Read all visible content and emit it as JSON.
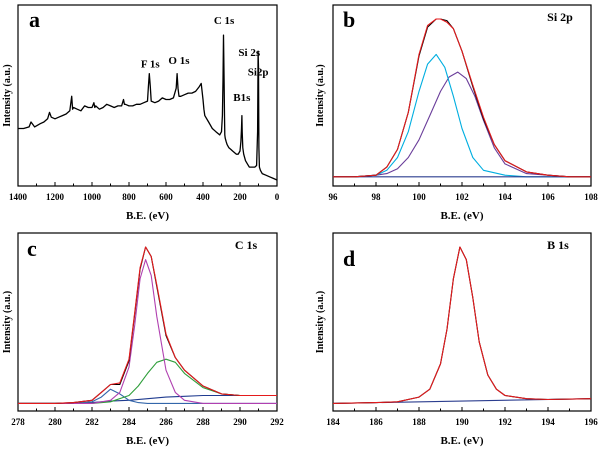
{
  "chart_data": [
    {
      "id": "a",
      "panel_letter": "a",
      "panel_title": "",
      "type": "line",
      "xlabel": "B.E. (eV)",
      "ylabel": "Intensity (a.u.)",
      "x_reversed": true,
      "xlim": [
        1400,
        0
      ],
      "xticks": [
        1400,
        1200,
        1000,
        800,
        600,
        400,
        200,
        0
      ],
      "tick_labels": [
        "1400",
        "1200",
        "1000",
        "800",
        "600",
        "400",
        "200",
        "0"
      ],
      "ylim": [
        0,
        100
      ],
      "series": [
        {
          "color": "#000000",
          "x": [
            1400,
            1370,
            1340,
            1330,
            1310,
            1280,
            1260,
            1240,
            1230,
            1220,
            1200,
            1180,
            1160,
            1140,
            1120,
            1110,
            1105,
            1100,
            1080,
            1060,
            1040,
            1020,
            1000,
            990,
            985,
            980,
            960,
            940,
            920,
            900,
            880,
            860,
            840,
            830,
            825,
            820,
            800,
            780,
            760,
            740,
            720,
            700,
            695,
            690,
            685,
            680,
            660,
            640,
            620,
            600,
            580,
            560,
            545,
            540,
            535,
            530,
            520,
            500,
            480,
            460,
            440,
            420,
            410,
            405,
            400,
            395,
            390,
            370,
            350,
            330,
            310,
            300,
            295,
            292,
            289,
            286,
            284,
            282,
            280,
            275,
            270,
            260,
            250,
            240,
            230,
            220,
            210,
            200,
            195,
            192,
            190,
            188,
            185,
            180,
            170,
            160,
            150,
            140,
            120,
            110,
            105,
            102,
            100,
            98,
            95,
            90,
            80,
            60,
            40,
            20,
            0
          ],
          "y": [
            32,
            32,
            33,
            36,
            33,
            35,
            36,
            38,
            42,
            39,
            38,
            39,
            40,
            41,
            43,
            52,
            44,
            45,
            44,
            43,
            46,
            45,
            45,
            48,
            45,
            46,
            44,
            45,
            47,
            46,
            45,
            46,
            46,
            50,
            47,
            47,
            46,
            46,
            47,
            47,
            48,
            49,
            58,
            66,
            58,
            49,
            48,
            49,
            51,
            50,
            50,
            51,
            57,
            66,
            57,
            52,
            52,
            53,
            54,
            54,
            55,
            58,
            60,
            55,
            50,
            44,
            40,
            36,
            32,
            30,
            28,
            30,
            40,
            62,
            90,
            62,
            40,
            28,
            26,
            24,
            22,
            20,
            19,
            18,
            17,
            16,
            16,
            18,
            24,
            32,
            40,
            30,
            20,
            16,
            12,
            10,
            8,
            8,
            8,
            9,
            30,
            80,
            70,
            20,
            8,
            6,
            4,
            3,
            2,
            1,
            0
          ]
        }
      ],
      "annotations": [
        {
          "text": "F 1s",
          "x": 685,
          "y": 70
        },
        {
          "text": "O 1s",
          "x": 530,
          "y": 72
        },
        {
          "text": "C 1s",
          "x": 286,
          "y": 97
        },
        {
          "text": "Si 2s",
          "x": 150,
          "y": 77
        },
        {
          "text": "B1s",
          "x": 190,
          "y": 49
        },
        {
          "text": "Si2p",
          "x": 102,
          "y": 65
        }
      ]
    },
    {
      "id": "b",
      "panel_letter": "b",
      "panel_title": "Si 2p",
      "type": "line",
      "xlabel": "B.E. (eV)",
      "ylabel": "Intensity (a.u.)",
      "x_reversed": false,
      "xlim": [
        96,
        108
      ],
      "xticks": [
        96,
        98,
        100,
        102,
        104,
        106,
        108
      ],
      "tick_labels": [
        "96",
        "98",
        "100",
        "102",
        "104",
        "106",
        "108"
      ],
      "ylim": [
        0,
        100
      ],
      "series": [
        {
          "color": "#6a3d9a",
          "x": [
            96,
            97,
            98,
            98.5,
            99,
            99.5,
            100,
            100.5,
            101,
            101.4,
            101.8,
            102.2,
            102.6,
            103,
            103.5,
            104,
            105,
            106,
            107,
            108
          ],
          "y": [
            2,
            2,
            3,
            4,
            7,
            14,
            25,
            40,
            55,
            64,
            67,
            63,
            52,
            37,
            20,
            10,
            4,
            3,
            2,
            2
          ]
        },
        {
          "color": "#00aee0",
          "x": [
            96,
            97,
            98,
            98.5,
            99,
            99.5,
            100,
            100.4,
            100.8,
            101.2,
            101.6,
            102,
            102.5,
            103,
            104,
            105,
            106,
            107,
            108
          ],
          "y": [
            2,
            2,
            3,
            6,
            14,
            30,
            55,
            72,
            78,
            70,
            52,
            32,
            14,
            6,
            3,
            2,
            2,
            2,
            2
          ]
        },
        {
          "color": "#2c3e8f",
          "x": [
            96,
            108
          ],
          "y": [
            2,
            2
          ]
        },
        {
          "color": "#000000",
          "x": [
            96,
            97,
            98,
            98.5,
            99,
            99.5,
            100,
            100.4,
            100.8,
            101,
            101.3,
            101.6,
            102,
            102.5,
            103,
            103.5,
            104,
            105,
            106,
            107,
            108
          ],
          "y": [
            2,
            2,
            3,
            8,
            19,
            42,
            77,
            95,
            100,
            100,
            99,
            94,
            80,
            58,
            38,
            22,
            12,
            5,
            3,
            2,
            2
          ]
        },
        {
          "color": "#e41a1c",
          "x": [
            96,
            97,
            98,
            98.5,
            99,
            99.5,
            100,
            100.4,
            100.8,
            101,
            101.3,
            101.6,
            102,
            102.5,
            103,
            103.5,
            104,
            105,
            106,
            107,
            108
          ],
          "y": [
            2,
            2,
            3,
            8,
            19,
            42,
            78,
            96,
            100,
            100,
            98,
            94,
            80,
            59,
            39,
            22,
            12,
            5,
            3,
            2,
            2
          ]
        }
      ],
      "annotations": []
    },
    {
      "id": "c",
      "panel_letter": "c",
      "panel_title": "C 1s",
      "type": "line",
      "xlabel": "B.E. (eV)",
      "ylabel": "Intensity (a.u.)",
      "x_reversed": false,
      "xlim": [
        278,
        292
      ],
      "xticks": [
        278,
        280,
        282,
        284,
        286,
        288,
        290,
        292
      ],
      "tick_labels": [
        "278",
        "280",
        "282",
        "284",
        "286",
        "288",
        "290",
        "292"
      ],
      "ylim": [
        0,
        100
      ],
      "series": [
        {
          "color": "#1f3b8f",
          "x": [
            278,
            280,
            282,
            283,
            284,
            285,
            286,
            287,
            288,
            290,
            292
          ],
          "y": [
            1,
            1,
            1.5,
            2.5,
            3,
            4,
            5,
            5.5,
            6,
            6,
            6
          ]
        },
        {
          "color": "#3366aa",
          "x": [
            278,
            281,
            282,
            282.5,
            283,
            283.5,
            284,
            284.5,
            285,
            286,
            292
          ],
          "y": [
            1,
            1,
            2,
            5,
            10,
            7,
            3,
            1.5,
            1,
            1,
            1
          ]
        },
        {
          "color": "#2e9e3a",
          "x": [
            278,
            282,
            283,
            284,
            284.5,
            285,
            285.5,
            286,
            286.5,
            287,
            288,
            289,
            290,
            292
          ],
          "y": [
            1,
            1,
            2,
            6,
            12,
            20,
            27,
            29,
            27,
            20,
            11,
            7,
            6,
            6
          ]
        },
        {
          "color": "#b040b0",
          "x": [
            278,
            282,
            283,
            283.5,
            284,
            284.3,
            284.6,
            284.9,
            285.2,
            285.5,
            286,
            286.5,
            287,
            288,
            292
          ],
          "y": [
            1,
            1,
            3,
            8,
            24,
            50,
            80,
            92,
            82,
            56,
            22,
            8,
            3,
            1,
            1
          ]
        },
        {
          "color": "#000000",
          "x": [
            278,
            280,
            281,
            282,
            282.5,
            283,
            283.5,
            284,
            284.3,
            284.6,
            284.9,
            285.2,
            285.5,
            286,
            286.5,
            287,
            288,
            289,
            290,
            292
          ],
          "y": [
            1,
            1,
            1.5,
            3,
            8,
            13,
            13,
            28,
            57,
            86,
            100,
            94,
            75,
            44,
            30,
            22,
            12,
            7,
            6,
            6
          ]
        },
        {
          "color": "#e41a1c",
          "x": [
            278,
            280,
            281,
            282,
            282.5,
            283,
            283.5,
            284,
            284.3,
            284.6,
            284.9,
            285.2,
            285.5,
            286,
            286.5,
            287,
            288,
            289,
            290,
            292
          ],
          "y": [
            1,
            1,
            1.5,
            3,
            8,
            13,
            14,
            29,
            58,
            87,
            100,
            94,
            76,
            45,
            30,
            22,
            12,
            7,
            6,
            6
          ]
        }
      ],
      "annotations": []
    },
    {
      "id": "d",
      "panel_letter": "d",
      "panel_title": "B 1s",
      "type": "line",
      "xlabel": "B.E. (eV)",
      "ylabel": "Intensity (a.u.)",
      "x_reversed": false,
      "xlim": [
        184,
        196
      ],
      "xticks": [
        184,
        186,
        188,
        190,
        192,
        194,
        196
      ],
      "tick_labels": [
        "184",
        "186",
        "188",
        "190",
        "192",
        "194",
        "196"
      ],
      "ylim": [
        0,
        100
      ],
      "series": [
        {
          "color": "#2c3e8f",
          "x": [
            184,
            196
          ],
          "y": [
            1,
            4
          ]
        },
        {
          "color": "#000000",
          "x": [
            184,
            186,
            187,
            188,
            188.5,
            189,
            189.3,
            189.6,
            189.9,
            190.2,
            190.5,
            190.8,
            191.2,
            191.6,
            192,
            193,
            194,
            196
          ],
          "y": [
            1,
            1.5,
            2,
            5,
            10,
            26,
            48,
            80,
            100,
            92,
            68,
            40,
            19,
            10,
            6,
            4,
            3.5,
            4
          ]
        },
        {
          "color": "#e41a1c",
          "x": [
            184,
            186,
            187,
            188,
            188.5,
            189,
            189.3,
            189.6,
            189.9,
            190.2,
            190.5,
            190.8,
            191.2,
            191.6,
            192,
            193,
            194,
            196
          ],
          "y": [
            1,
            1.5,
            2,
            5,
            10,
            26,
            48,
            80,
            100,
            92,
            68,
            40,
            19,
            10,
            6,
            4,
            3.5,
            4
          ]
        }
      ],
      "annotations": []
    }
  ]
}
